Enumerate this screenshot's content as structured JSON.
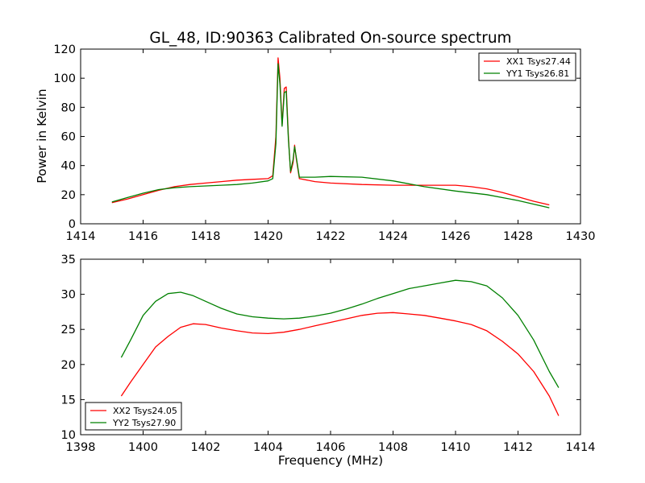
{
  "title": "GL_48, ID:90363 Calibrated On-source spectrum",
  "colors": {
    "red": "#ff0000",
    "green": "#008000"
  },
  "chart_data": [
    {
      "type": "line",
      "title": "GL_48, ID:90363 Calibrated On-source spectrum",
      "xlabel": "",
      "ylabel": "Power in Kelvin",
      "xlim": [
        1414,
        1430
      ],
      "ylim": [
        0,
        120
      ],
      "xticks": [
        "1414",
        "1416",
        "1418",
        "1420",
        "1422",
        "1424",
        "1426",
        "1428",
        "1430"
      ],
      "yticks": [
        "0",
        "20",
        "40",
        "60",
        "80",
        "100",
        "120"
      ],
      "grid": false,
      "legend_position": "top-right",
      "series": [
        {
          "name": "XX1 Tsys27.44",
          "color": "#ff0000",
          "points": [
            [
              1415.0,
              14.5
            ],
            [
              1415.5,
              17.0
            ],
            [
              1416.0,
              20.0
            ],
            [
              1416.5,
              23.0
            ],
            [
              1417.0,
              25.5
            ],
            [
              1417.5,
              27.0
            ],
            [
              1418.0,
              28.0
            ],
            [
              1418.5,
              29.0
            ],
            [
              1419.0,
              30.0
            ],
            [
              1419.5,
              30.5
            ],
            [
              1420.0,
              31.0
            ],
            [
              1420.15,
              33.0
            ],
            [
              1420.25,
              60.0
            ],
            [
              1420.32,
              114.0
            ],
            [
              1420.38,
              100.0
            ],
            [
              1420.45,
              68.0
            ],
            [
              1420.52,
              93.0
            ],
            [
              1420.58,
              94.0
            ],
            [
              1420.65,
              60.0
            ],
            [
              1420.72,
              35.0
            ],
            [
              1420.8,
              42.0
            ],
            [
              1420.85,
              54.0
            ],
            [
              1420.9,
              45.0
            ],
            [
              1421.0,
              31.0
            ],
            [
              1421.5,
              29.0
            ],
            [
              1422.0,
              28.0
            ],
            [
              1423.0,
              27.0
            ],
            [
              1424.0,
              26.5
            ],
            [
              1425.0,
              26.5
            ],
            [
              1426.0,
              26.5
            ],
            [
              1426.5,
              25.5
            ],
            [
              1427.0,
              24.0
            ],
            [
              1427.5,
              21.5
            ],
            [
              1428.0,
              18.5
            ],
            [
              1428.5,
              15.5
            ],
            [
              1429.0,
              13.0
            ]
          ]
        },
        {
          "name": "YY1 Tsys26.81",
          "color": "#008000",
          "points": [
            [
              1415.0,
              15.0
            ],
            [
              1415.5,
              18.0
            ],
            [
              1416.0,
              21.0
            ],
            [
              1416.5,
              23.5
            ],
            [
              1417.0,
              24.8
            ],
            [
              1417.5,
              25.5
            ],
            [
              1418.0,
              26.0
            ],
            [
              1418.5,
              26.5
            ],
            [
              1419.0,
              27.0
            ],
            [
              1419.5,
              28.0
            ],
            [
              1420.0,
              29.5
            ],
            [
              1420.15,
              31.0
            ],
            [
              1420.25,
              55.0
            ],
            [
              1420.32,
              110.0
            ],
            [
              1420.38,
              96.0
            ],
            [
              1420.45,
              67.0
            ],
            [
              1420.52,
              90.0
            ],
            [
              1420.58,
              91.0
            ],
            [
              1420.65,
              58.0
            ],
            [
              1420.72,
              36.0
            ],
            [
              1420.8,
              44.0
            ],
            [
              1420.85,
              53.0
            ],
            [
              1420.9,
              46.0
            ],
            [
              1421.0,
              32.0
            ],
            [
              1421.5,
              32.0
            ],
            [
              1422.0,
              32.5
            ],
            [
              1423.0,
              32.0
            ],
            [
              1424.0,
              29.5
            ],
            [
              1425.0,
              25.5
            ],
            [
              1426.0,
              22.5
            ],
            [
              1427.0,
              20.0
            ],
            [
              1428.0,
              16.0
            ],
            [
              1428.5,
              13.5
            ],
            [
              1429.0,
              11.0
            ]
          ]
        }
      ]
    },
    {
      "type": "line",
      "title": "",
      "xlabel": "Frequency (MHz)",
      "ylabel": "",
      "xlim": [
        1398,
        1414
      ],
      "ylim": [
        10,
        35
      ],
      "xticks": [
        "1398",
        "1400",
        "1402",
        "1404",
        "1406",
        "1408",
        "1410",
        "1412",
        "1414"
      ],
      "yticks": [
        "10",
        "15",
        "20",
        "25",
        "30",
        "35"
      ],
      "grid": false,
      "legend_position": "bottom-left",
      "series": [
        {
          "name": "XX2 Tsys24.05",
          "color": "#ff0000",
          "points": [
            [
              1399.3,
              15.5
            ],
            [
              1399.6,
              17.5
            ],
            [
              1400.0,
              20.0
            ],
            [
              1400.4,
              22.5
            ],
            [
              1400.8,
              24.0
            ],
            [
              1401.2,
              25.3
            ],
            [
              1401.6,
              25.8
            ],
            [
              1402.0,
              25.7
            ],
            [
              1402.5,
              25.2
            ],
            [
              1403.0,
              24.8
            ],
            [
              1403.5,
              24.5
            ],
            [
              1404.0,
              24.4
            ],
            [
              1404.5,
              24.6
            ],
            [
              1405.0,
              25.0
            ],
            [
              1405.5,
              25.5
            ],
            [
              1406.0,
              26.0
            ],
            [
              1406.5,
              26.5
            ],
            [
              1407.0,
              27.0
            ],
            [
              1407.5,
              27.3
            ],
            [
              1408.0,
              27.4
            ],
            [
              1408.5,
              27.2
            ],
            [
              1409.0,
              27.0
            ],
            [
              1409.5,
              26.6
            ],
            [
              1410.0,
              26.2
            ],
            [
              1410.5,
              25.7
            ],
            [
              1411.0,
              24.8
            ],
            [
              1411.5,
              23.3
            ],
            [
              1412.0,
              21.5
            ],
            [
              1412.5,
              19.0
            ],
            [
              1413.0,
              15.5
            ],
            [
              1413.3,
              12.7
            ]
          ]
        },
        {
          "name": "YY2 Tsys27.90",
          "color": "#008000",
          "points": [
            [
              1399.3,
              21.0
            ],
            [
              1399.6,
              23.5
            ],
            [
              1400.0,
              27.0
            ],
            [
              1400.4,
              29.0
            ],
            [
              1400.8,
              30.1
            ],
            [
              1401.2,
              30.3
            ],
            [
              1401.6,
              29.8
            ],
            [
              1402.0,
              29.0
            ],
            [
              1402.5,
              28.0
            ],
            [
              1403.0,
              27.2
            ],
            [
              1403.5,
              26.8
            ],
            [
              1404.0,
              26.6
            ],
            [
              1404.5,
              26.5
            ],
            [
              1405.0,
              26.6
            ],
            [
              1405.5,
              26.9
            ],
            [
              1406.0,
              27.3
            ],
            [
              1406.5,
              27.9
            ],
            [
              1407.0,
              28.6
            ],
            [
              1407.5,
              29.4
            ],
            [
              1408.0,
              30.1
            ],
            [
              1408.5,
              30.8
            ],
            [
              1409.0,
              31.2
            ],
            [
              1409.5,
              31.6
            ],
            [
              1410.0,
              32.0
            ],
            [
              1410.5,
              31.8
            ],
            [
              1411.0,
              31.2
            ],
            [
              1411.5,
              29.5
            ],
            [
              1412.0,
              27.0
            ],
            [
              1412.5,
              23.5
            ],
            [
              1413.0,
              19.0
            ],
            [
              1413.3,
              16.7
            ]
          ]
        }
      ]
    }
  ]
}
